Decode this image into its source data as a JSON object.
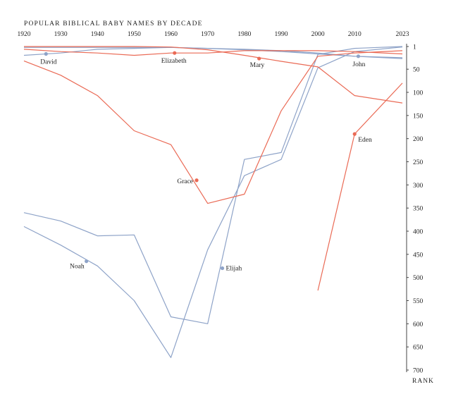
{
  "chart_data": {
    "type": "line",
    "title": "POPULAR BIBLICAL BABY NAMES BY DECADE",
    "ylabel": "RANK",
    "x_ticks": [
      "1920",
      "1930",
      "1940",
      "1950",
      "1960",
      "1970",
      "1980",
      "1990",
      "2000",
      "2010",
      "2023"
    ],
    "y_ticks": [
      "1",
      "50",
      "100",
      "150",
      "200",
      "250",
      "300",
      "350",
      "400",
      "450",
      "500",
      "550",
      "600",
      "650",
      "700"
    ],
    "ylim": [
      1,
      700
    ],
    "y_inverted": true,
    "grid": false,
    "colors": {
      "boys": "#8ea3c8",
      "girls": "#ea6a55"
    },
    "series": [
      {
        "name": "David",
        "gender": "boys",
        "x": [
          1920,
          1930,
          1940,
          1950,
          1960,
          1970,
          1980,
          1990,
          2000,
          2010,
          2023
        ],
        "y": [
          20,
          15,
          7,
          5,
          3,
          5,
          8,
          12,
          17,
          22,
          25
        ],
        "marker": {
          "x": 1926,
          "y": 17
        }
      },
      {
        "name": "John",
        "gender": "boys",
        "x": [
          1920,
          1930,
          1940,
          1950,
          1960,
          1970,
          1980,
          1990,
          2000,
          2010,
          2023
        ],
        "y": [
          3,
          3,
          3,
          3,
          3,
          5,
          7,
          10,
          15,
          22,
          27
        ],
        "marker": {
          "x": 2011,
          "y": 22
        }
      },
      {
        "name": "Noah",
        "gender": "boys",
        "x": [
          1920,
          1930,
          1940,
          1950,
          1960,
          1970,
          1980,
          1990,
          2000,
          2010,
          2023
        ],
        "y": [
          390,
          430,
          475,
          550,
          673,
          440,
          280,
          245,
          47,
          12,
          2
        ],
        "marker": {
          "x": 1937,
          "y": 465
        }
      },
      {
        "name": "Elijah",
        "gender": "boys",
        "x": [
          1920,
          1930,
          1940,
          1950,
          1960,
          1970,
          1980,
          1990,
          2000,
          2010,
          2023
        ],
        "y": [
          360,
          378,
          410,
          408,
          585,
          600,
          245,
          230,
          18,
          5,
          1
        ],
        "marker": {
          "x": 1974,
          "y": 480
        }
      },
      {
        "name": "Elizabeth",
        "gender": "girls",
        "x": [
          1920,
          1930,
          1940,
          1950,
          1960,
          1970,
          1980,
          1990,
          2000,
          2010,
          2023
        ],
        "y": [
          7,
          12,
          15,
          20,
          15,
          15,
          10,
          10,
          10,
          12,
          17
        ],
        "marker": {
          "x": 1961,
          "y": 15
        }
      },
      {
        "name": "Mary",
        "gender": "girls",
        "x": [
          1920,
          1930,
          1940,
          1950,
          1960,
          1970,
          1980,
          1990,
          2000,
          2010,
          2023
        ],
        "y": [
          1,
          1,
          1,
          1,
          2,
          8,
          20,
          33,
          45,
          107,
          123
        ],
        "marker": {
          "x": 1984,
          "y": 27
        }
      },
      {
        "name": "Grace",
        "gender": "girls",
        "x": [
          1920,
          1930,
          1940,
          1950,
          1960,
          1970,
          1980,
          1990,
          2000,
          2010,
          2023
        ],
        "y": [
          32,
          63,
          107,
          183,
          213,
          340,
          320,
          140,
          22,
          15,
          10
        ],
        "marker": {
          "x": 1967,
          "y": 290
        }
      },
      {
        "name": "Eden",
        "gender": "girls",
        "x": [
          2000,
          2010,
          2023
        ],
        "y": [
          528,
          190,
          80
        ],
        "marker": {
          "x": 2010,
          "y": 190
        }
      }
    ]
  }
}
